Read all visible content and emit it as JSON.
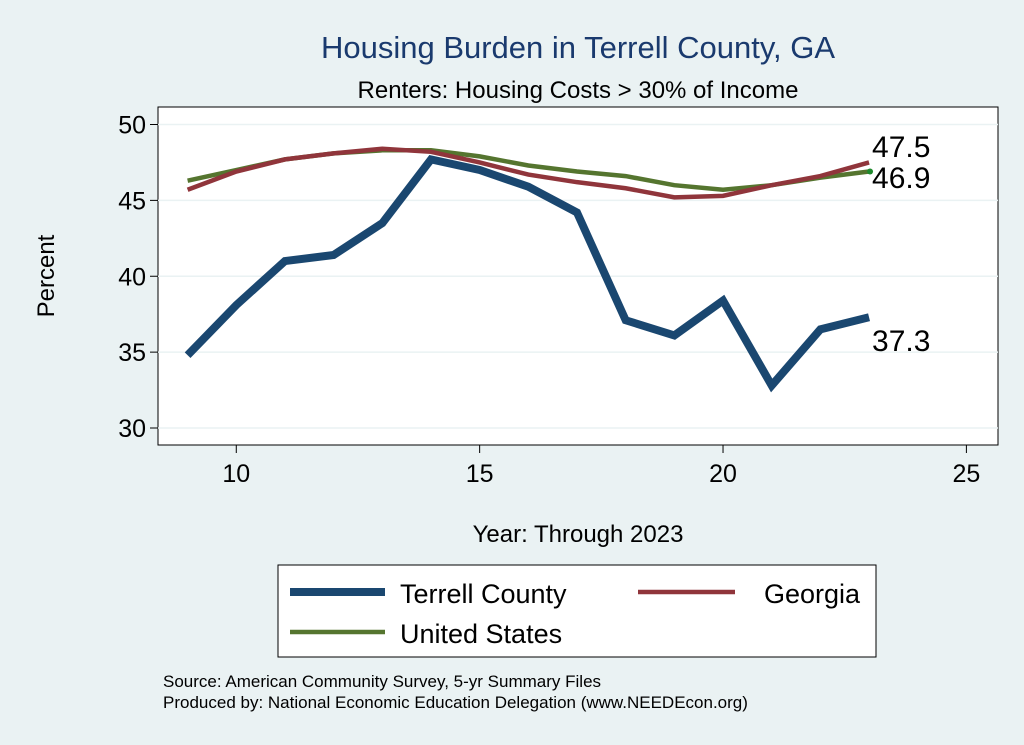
{
  "chart_data": {
    "type": "line",
    "title": "Housing Burden in Terrell County, GA",
    "subtitle": "Renters: Housing Costs > 30% of Income",
    "xlabel": "Year: Through 2023",
    "ylabel": "Percent",
    "xlim": [
      8.7,
      25.3
    ],
    "ylim": [
      29,
      51
    ],
    "x_ticks": [
      10,
      15,
      20,
      25
    ],
    "y_ticks": [
      30,
      35,
      40,
      45,
      50
    ],
    "x": [
      9,
      10,
      11,
      12,
      13,
      14,
      15,
      16,
      17,
      18,
      19,
      20,
      21,
      22,
      23
    ],
    "grid": true,
    "series": [
      {
        "name": "Terrell County",
        "color": "#1A4770",
        "values": [
          34.8,
          38.1,
          41.0,
          41.4,
          43.5,
          47.7,
          47.0,
          45.9,
          44.2,
          37.1,
          36.1,
          38.4,
          32.8,
          36.5,
          37.3
        ],
        "end_label": "37.3"
      },
      {
        "name": "Georgia",
        "color": "#90353B",
        "values": [
          45.7,
          46.9,
          47.7,
          48.1,
          48.4,
          48.2,
          47.5,
          46.7,
          46.2,
          45.8,
          45.2,
          45.3,
          46.0,
          46.6,
          47.5
        ],
        "end_label": "47.5"
      },
      {
        "name": "United States",
        "color": "#55752F",
        "values": [
          46.3,
          47.0,
          47.7,
          48.1,
          48.3,
          48.3,
          47.9,
          47.3,
          46.9,
          46.6,
          46.0,
          45.7,
          46.0,
          46.5,
          46.9
        ],
        "end_label": "46.9"
      }
    ],
    "legend": {
      "position": "bottom",
      "entries": [
        "Terrell County",
        "Georgia",
        "United States"
      ]
    }
  },
  "notes": {
    "source": "Source: American Community Survey, 5-yr Summary Files",
    "produced_by": "Produced by: National Economic Education Delegation (www.NEEDEcon.org)"
  }
}
